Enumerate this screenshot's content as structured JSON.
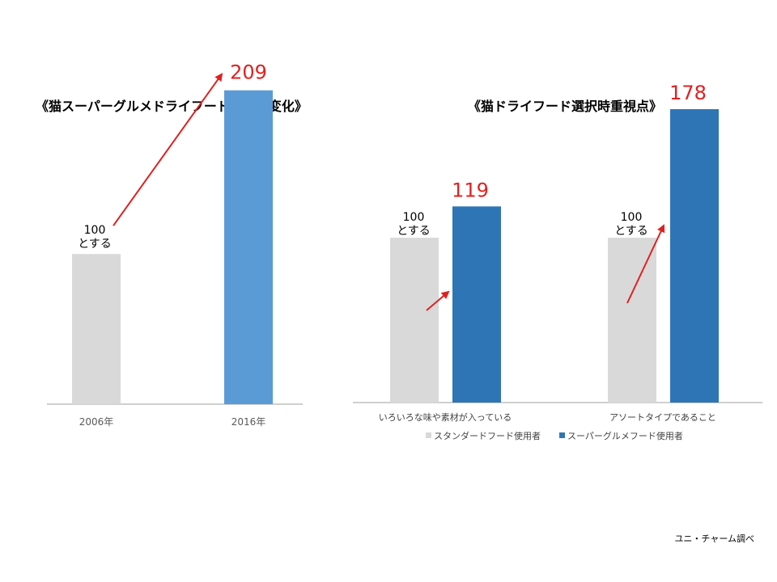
{
  "chart_data": [
    {
      "type": "bar",
      "title": "《猫スーパーグルメドライフード市場の変化》",
      "categories": [
        "2006年",
        "2016年"
      ],
      "values": [
        100,
        209
      ],
      "ylim": [
        0,
        225
      ],
      "colors": [
        "#d9d9d9",
        "#5b9bd5"
      ],
      "baseline_note": [
        "100",
        "とする"
      ],
      "highlight_value": "209",
      "highlight_color": "#e02020",
      "grid": false
    },
    {
      "type": "bar",
      "title": "《猫ドライフード選択時重視点》",
      "categories": [
        "いろいろな味や素材が入っている",
        "アソートタイプであること"
      ],
      "series": [
        {
          "name": "スタンダードフード使用者",
          "values": [
            100,
            100
          ],
          "color": "#d9d9d9"
        },
        {
          "name": "スーパーグルメフード使用者",
          "values": [
            119,
            178
          ],
          "color": "#2e75b6"
        }
      ],
      "ylim": [
        0,
        205
      ],
      "baseline_note": [
        "100",
        "とする"
      ],
      "highlight_values": [
        "119",
        "178"
      ],
      "highlight_color": "#e02020",
      "legend_position": "bottom",
      "grid": false
    }
  ],
  "source": "ユニ・チャーム調べ"
}
